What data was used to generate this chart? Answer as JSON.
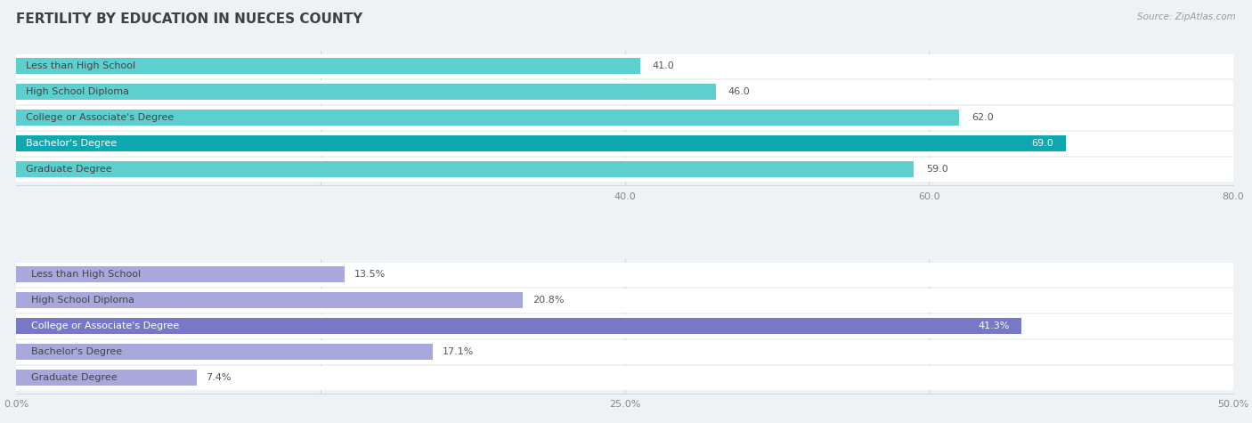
{
  "title": "FERTILITY BY EDUCATION IN NUECES COUNTY",
  "source": "Source: ZipAtlas.com",
  "top_chart": {
    "categories": [
      "Less than High School",
      "High School Diploma",
      "College or Associate's Degree",
      "Bachelor's Degree",
      "Graduate Degree"
    ],
    "values": [
      41.0,
      46.0,
      62.0,
      69.0,
      59.0
    ],
    "xlim": [
      0,
      80
    ],
    "xticks": [
      0,
      20,
      40,
      60,
      80
    ],
    "xtick_labels": [
      "",
      "",
      "40.0",
      "60.0",
      "80.0"
    ],
    "bar_color_normal": "#5ecfcf",
    "bar_color_highlight": "#0fa8b0",
    "highlight_index": 3
  },
  "bottom_chart": {
    "categories": [
      "Less than High School",
      "High School Diploma",
      "College or Associate's Degree",
      "Bachelor's Degree",
      "Graduate Degree"
    ],
    "values": [
      13.5,
      20.8,
      41.3,
      17.1,
      7.4
    ],
    "xlim": [
      0,
      50
    ],
    "xticks": [
      0,
      12.5,
      25,
      37.5,
      50
    ],
    "xtick_labels": [
      "0.0%",
      "",
      "25.0%",
      "",
      "50.0%"
    ],
    "bar_color_normal": "#a8a8dc",
    "bar_color_highlight": "#7878c8",
    "highlight_index": 2
  },
  "label_fontsize": 8.0,
  "value_fontsize": 8.0,
  "title_fontsize": 11,
  "bg_color": "#eef2f5",
  "bar_bg_color": "#ffffff",
  "label_color": "#555555",
  "title_color": "#404040",
  "grid_color": "#d0d8e0",
  "tick_color": "#888888"
}
